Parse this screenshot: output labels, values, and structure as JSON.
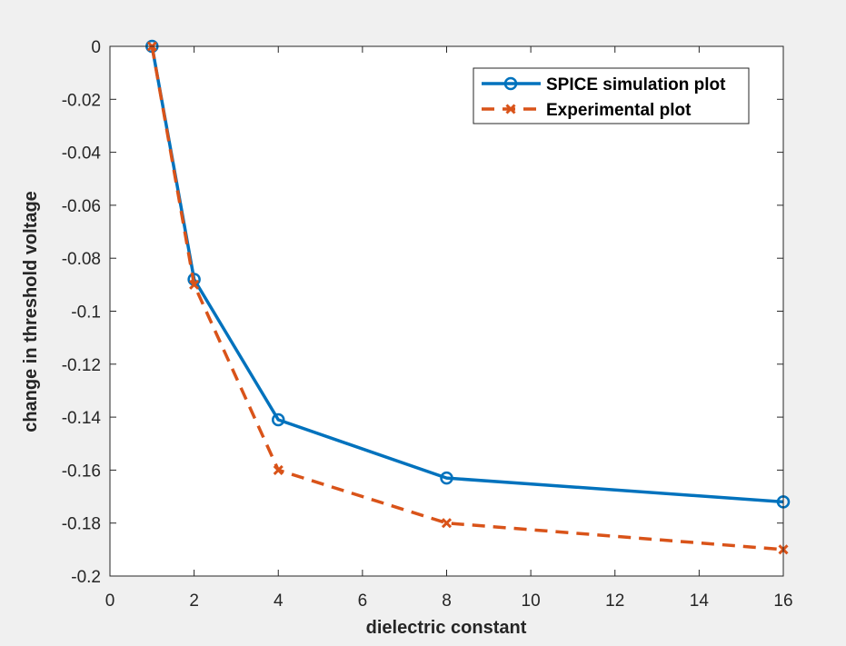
{
  "chart_data": {
    "type": "line",
    "xlabel": "dielectric constant",
    "ylabel": "change in threshold voltage",
    "xlim": [
      0,
      16
    ],
    "ylim": [
      -0.2,
      0
    ],
    "x_tick_positions": [
      0,
      2,
      4,
      6,
      8,
      10,
      12,
      14,
      16
    ],
    "x_tick_labels": [
      "0",
      "2",
      "4",
      "6",
      "8",
      "10",
      "12",
      "14",
      "16"
    ],
    "y_tick_positions": [
      0,
      -0.02,
      -0.04,
      -0.06,
      -0.08,
      -0.1,
      -0.12,
      -0.14,
      -0.16,
      -0.18,
      -0.2
    ],
    "y_tick_labels": [
      "0",
      "-0.02",
      "-0.04",
      "-0.06",
      "-0.08",
      "-0.1",
      "-0.12",
      "-0.14",
      "-0.16",
      "-0.18",
      "-0.2"
    ],
    "legend_position": "top-right",
    "series": [
      {
        "name": "SPICE simulation plot",
        "color": "#0072bd",
        "line_style": "solid",
        "marker": "circle",
        "x": [
          1,
          2,
          4,
          8,
          16
        ],
        "values": [
          0,
          -0.088,
          -0.141,
          -0.163,
          -0.172
        ]
      },
      {
        "name": "Experimental plot",
        "color": "#d95319",
        "line_style": "dashed",
        "marker": "x",
        "x": [
          1,
          2,
          4,
          8,
          16
        ],
        "values": [
          0,
          -0.09,
          -0.16,
          -0.18,
          -0.19
        ]
      }
    ]
  }
}
